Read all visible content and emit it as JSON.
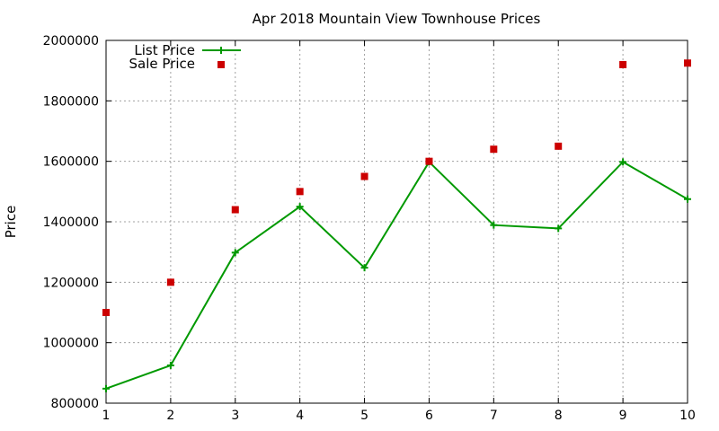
{
  "chart_data": {
    "type": "line",
    "title": "Apr 2018 Mountain View Townhouse Prices",
    "xlabel": "",
    "ylabel": "Price",
    "x": [
      1,
      2,
      3,
      4,
      5,
      6,
      7,
      8,
      9,
      10
    ],
    "xlim": [
      1,
      10
    ],
    "ylim": [
      800000,
      2000000
    ],
    "xticks": [
      "1",
      "2",
      "3",
      "4",
      "5",
      "6",
      "7",
      "8",
      "9",
      "10"
    ],
    "yticks": [
      "800000",
      "1000000",
      "1200000",
      "1400000",
      "1600000",
      "1800000",
      "2000000"
    ],
    "grid": true,
    "legend_position": "top-left",
    "series": [
      {
        "name": "List Price",
        "style": "line-with-plus-markers",
        "color": "#009900",
        "values": [
          848000,
          925000,
          1298000,
          1450000,
          1248000,
          1598000,
          1389000,
          1378000,
          1598000,
          1475000
        ]
      },
      {
        "name": "Sale Price",
        "style": "square-markers",
        "color": "#cc0000",
        "values": [
          1100000,
          1200000,
          1440000,
          1500000,
          1550000,
          1600000,
          1640000,
          1650000,
          1920000,
          1925000
        ]
      }
    ]
  }
}
